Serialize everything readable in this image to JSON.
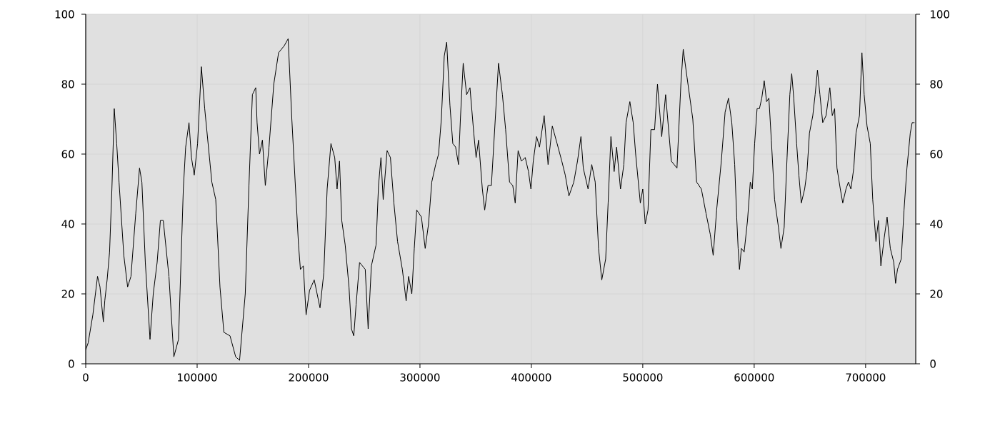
{
  "chart_data": {
    "type": "line",
    "grid": true,
    "xlim": [
      0,
      745000
    ],
    "ylim": [
      0,
      100
    ],
    "y2lim": [
      0,
      100
    ],
    "xticks": [
      0,
      100000,
      200000,
      300000,
      400000,
      500000,
      600000,
      700000
    ],
    "yticks": [
      0,
      20,
      40,
      60,
      80,
      100
    ],
    "y2ticks": [
      0,
      20,
      40,
      60,
      80,
      100
    ],
    "x": [
      0,
      2200,
      6400,
      10600,
      12800,
      15800,
      17100,
      19200,
      21400,
      23500,
      25600,
      27800,
      29900,
      34200,
      37600,
      40600,
      44900,
      48300,
      50400,
      53500,
      57700,
      60600,
      64100,
      67000,
      69600,
      74700,
      79100,
      83300,
      87600,
      89700,
      92700,
      94900,
      97400,
      100400,
      103800,
      106800,
      113200,
      116700,
      120500,
      124000,
      129500,
      134600,
      138100,
      143200,
      146500,
      149600,
      152600,
      153800,
      156000,
      158600,
      161200,
      164500,
      168800,
      173100,
      178200,
      181700,
      185000,
      191000,
      192700,
      195300,
      197800,
      200900,
      205100,
      210300,
      213700,
      216700,
      220100,
      223500,
      225600,
      227800,
      229800,
      232900,
      236300,
      238500,
      240600,
      242700,
      245800,
      250900,
      253500,
      256400,
      260600,
      262800,
      265000,
      267000,
      270500,
      273500,
      276600,
      279900,
      284200,
      287600,
      289800,
      292700,
      294900,
      297100,
      301300,
      304700,
      307700,
      310600,
      314100,
      316700,
      319200,
      321800,
      324000,
      326900,
      329500,
      332000,
      334600,
      336300,
      338800,
      341900,
      344900,
      348300,
      350400,
      352600,
      356000,
      358100,
      361100,
      364100,
      367600,
      370500,
      374000,
      376900,
      380400,
      383300,
      385500,
      388100,
      391000,
      394500,
      397400,
      399600,
      401700,
      404700,
      407300,
      411500,
      415000,
      418800,
      423100,
      427300,
      430400,
      433700,
      438100,
      441400,
      444500,
      446600,
      450900,
      454200,
      457300,
      460300,
      463200,
      466700,
      468900,
      471400,
      474300,
      476500,
      480000,
      483000,
      485000,
      488400,
      491400,
      493600,
      497800,
      500000,
      502200,
      504700,
      507300,
      510600,
      513200,
      517000,
      520500,
      525600,
      530700,
      534200,
      536300,
      539700,
      544900,
      548300,
      552600,
      556800,
      560600,
      563200,
      566300,
      570500,
      573900,
      576900,
      579900,
      582500,
      584300,
      585600,
      586800,
      588500,
      591000,
      594000,
      596500,
      598300,
      600400,
      602600,
      604700,
      606800,
      609000,
      611100,
      613200,
      615400,
      618300,
      621800,
      624000,
      626900,
      629500,
      632000,
      633700,
      635500,
      638100,
      640100,
      642300,
      645300,
      647400,
      649600,
      652600,
      654700,
      656800,
      659000,
      661500,
      664500,
      667900,
      670100,
      672200,
      674300,
      677300,
      679500,
      682400,
      684600,
      686800,
      689400,
      691400,
      694500,
      696700,
      698700,
      701300,
      704200,
      706400,
      709300,
      711500,
      713700,
      716700,
      719300,
      722200,
      725300,
      726900,
      728600,
      732000,
      734500,
      737100,
      740100,
      741800,
      743900
    ],
    "series": [
      {
        "color": "#000000",
        "values": [
          4,
          6,
          14,
          25,
          22,
          12,
          18,
          24,
          32,
          50,
          73,
          63,
          52,
          31,
          22,
          25,
          43,
          56,
          52,
          29,
          7,
          20,
          29,
          41,
          41,
          25,
          2,
          7,
          50,
          62,
          69,
          59,
          54,
          63,
          85,
          73,
          52,
          47,
          22,
          9,
          8,
          2,
          1,
          20,
          51,
          77,
          79,
          69,
          60,
          64,
          51,
          62,
          80,
          89,
          91,
          93,
          70,
          34,
          27,
          28,
          14,
          21,
          24,
          16,
          26,
          50,
          63,
          59,
          50,
          58,
          41,
          34,
          22,
          10,
          8,
          17,
          29,
          27,
          10,
          28,
          34,
          51,
          59,
          47,
          61,
          59,
          46,
          35,
          27,
          18,
          25,
          20,
          33,
          44,
          42,
          33,
          40,
          52,
          57,
          60,
          70,
          88,
          92,
          74,
          63,
          62,
          57,
          70,
          86,
          77,
          79,
          66,
          59,
          64,
          50,
          44,
          51,
          51,
          70,
          86,
          77,
          67,
          52,
          51,
          46,
          61,
          58,
          59,
          55,
          50,
          58,
          65,
          62,
          71,
          57,
          68,
          63,
          58,
          54,
          48,
          52,
          58,
          65,
          56,
          50,
          57,
          52,
          33,
          24,
          30,
          46,
          65,
          55,
          62,
          50,
          57,
          69,
          75,
          69,
          60,
          46,
          50,
          40,
          44,
          67,
          67,
          80,
          65,
          77,
          58,
          56,
          80,
          90,
          82,
          70,
          52,
          50,
          43,
          37,
          31,
          44,
          58,
          72,
          76,
          69,
          57,
          42,
          33,
          27,
          33,
          32,
          41,
          52,
          50,
          63,
          73,
          73,
          76,
          81,
          75,
          76,
          64,
          47,
          39,
          33,
          39,
          59,
          77,
          83,
          76,
          63,
          54,
          46,
          50,
          55,
          66,
          71,
          77,
          84,
          77,
          69,
          71,
          79,
          71,
          73,
          56,
          50,
          46,
          50,
          52,
          50,
          56,
          66,
          71,
          89,
          77,
          68,
          63,
          47,
          35,
          41,
          28,
          36,
          42,
          33,
          29,
          23,
          27,
          30,
          44,
          56,
          66,
          69,
          69
        ]
      }
    ]
  }
}
